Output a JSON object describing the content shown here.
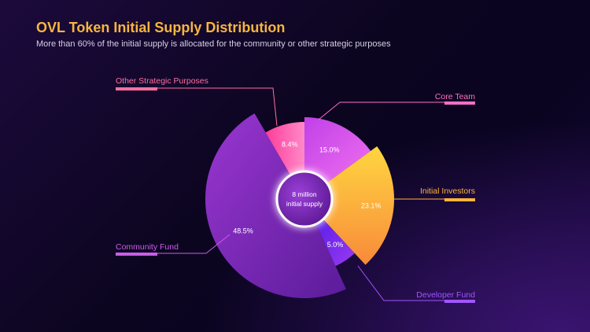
{
  "chart_data": {
    "type": "pie",
    "variant": "polar-area donut (varying slice radius)",
    "title": "OVL Token Initial Supply Distribution",
    "subtitle": "More than 60% of the initial supply is allocated for the community or other strategic purposes",
    "center_label": [
      "8 million",
      "initial supply"
    ],
    "slices": [
      {
        "name": "Core Team",
        "value": 15.0,
        "label": "15.0%",
        "color": "#e35ef0",
        "label_color": "#ff6ec8"
      },
      {
        "name": "Initial Investors",
        "value": 23.1,
        "label": "23.1%",
        "color": "#fbb040",
        "label_color": "#ffb43a"
      },
      {
        "name": "Developer Fund",
        "value": 5.0,
        "label": "5.0%",
        "color": "#7a2cf0",
        "label_color": "#a255ff"
      },
      {
        "name": "Community Fund",
        "value": 48.5,
        "label": "48.5%",
        "color": "#8e2cc4",
        "label_color": "#c85ee8"
      },
      {
        "name": "Other Strategic Purposes",
        "value": 8.4,
        "label": "8.4%",
        "color": "#ff4fa8",
        "label_color": "#ff6f9f"
      }
    ],
    "legend": "none (callout labels)"
  }
}
